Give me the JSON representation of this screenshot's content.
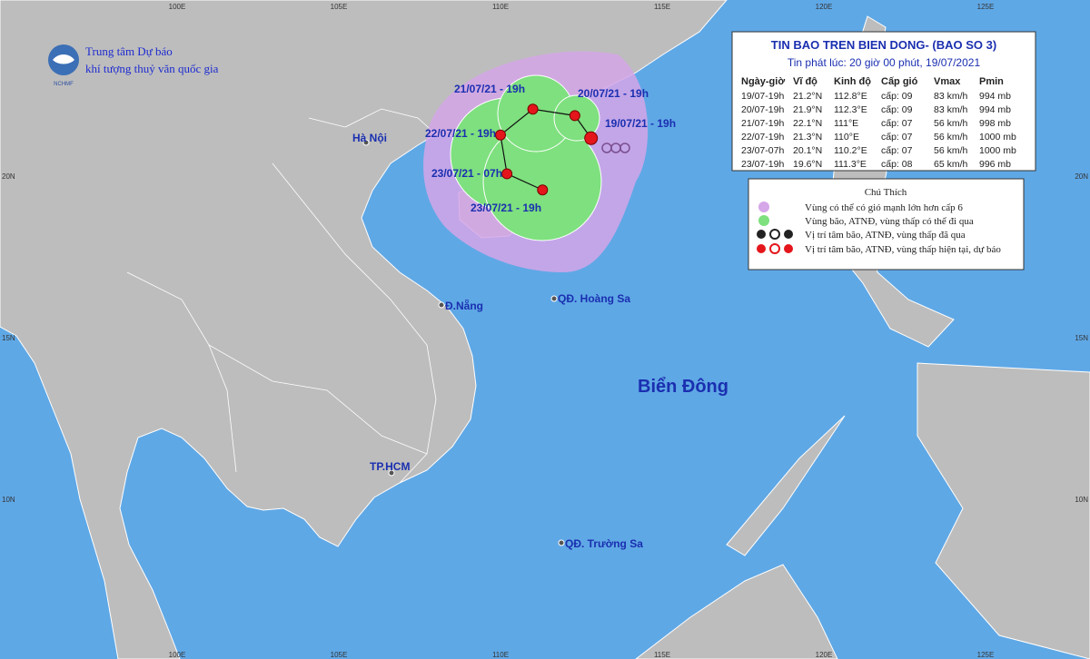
{
  "header": {
    "org_line1": "Trung tâm Dự báo",
    "org_line2": "khí tượng thuỷ văn quốc gia",
    "logo_text": "NCHMF"
  },
  "grid_labels": {
    "longitudes": [
      "100E",
      "105E",
      "110E",
      "115E",
      "120E",
      "125E"
    ],
    "latitudes": [
      "20N",
      "15N",
      "10N"
    ]
  },
  "info_box": {
    "title": "TIN BAO TREN BIEN DONG- (BAO SO 3)",
    "subtitle": "Tin phát lúc: 20 giờ 00 phút, 19/07/2021",
    "columns": [
      "Ngày-giờ",
      "Vĩ độ",
      "Kinh độ",
      "Cấp gió",
      "Vmax",
      "Pmin"
    ],
    "rows": [
      [
        "19/07-19h",
        "21.2°N",
        "112.8°E",
        "cấp: 09",
        "83 km/h",
        "994 mb"
      ],
      [
        "20/07-19h",
        "21.9°N",
        "112.3°E",
        "cấp: 09",
        "83 km/h",
        "994 mb"
      ],
      [
        "21/07-19h",
        "22.1°N",
        "111°E",
        "cấp: 07",
        "56 km/h",
        "998 mb"
      ],
      [
        "22/07-19h",
        "21.3°N",
        "110°E",
        "cấp: 07",
        "56 km/h",
        "1000 mb"
      ],
      [
        "23/07-07h",
        "20.1°N",
        "110.2°E",
        "cấp: 07",
        "56 km/h",
        "1000 mb"
      ],
      [
        "23/07-19h",
        "19.6°N",
        "111.3°E",
        "cấp: 08",
        "65 km/h",
        "996 mb"
      ]
    ]
  },
  "legend": {
    "title": "Chú Thích",
    "items": [
      "Vùng có thể có gió mạnh lớn hơn cấp 6",
      "Vùng bão, ATNĐ, vùng thấp có thể đi qua",
      "Vị trí tâm bão, ATNĐ, vùng thấp đã qua",
      "Vị trí tâm bão, ATNĐ, vùng thấp hiện tại, dự báo"
    ]
  },
  "track_labels": [
    "19/07/21 - 19h",
    "20/07/21 - 19h",
    "21/07/21 - 19h",
    "22/07/21 - 19h",
    "23/07/21 - 07h",
    "23/07/21 - 19h"
  ],
  "places": [
    "Hà Nội",
    "Đ.Nẵng",
    "QĐ. Hoàng Sa",
    "TP.HCM",
    "QĐ. Trường Sa"
  ],
  "sea_label": "Biển Đông"
}
